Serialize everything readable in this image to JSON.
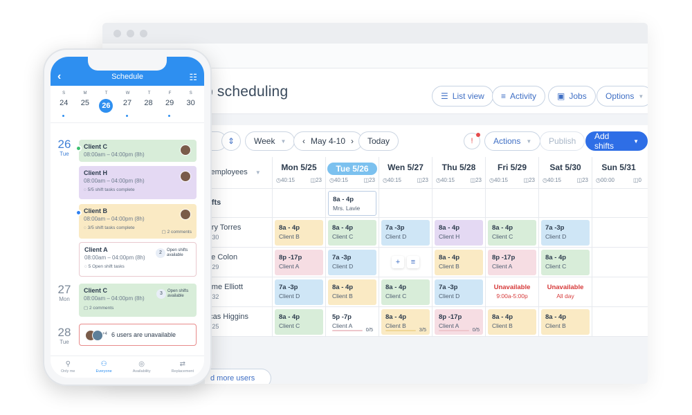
{
  "window": {
    "title": "Job scheduling",
    "title_visible": "b scheduling",
    "header_buttons": [
      {
        "label": "List view",
        "icon": "list-icon"
      },
      {
        "label": "Activity",
        "icon": "lines-icon"
      },
      {
        "label": "Jobs",
        "icon": "briefcase-icon"
      },
      {
        "label": "Options",
        "icon": "chevron-down-icon"
      }
    ]
  },
  "toolbar": {
    "range": "Week",
    "date": "May 4-10",
    "today": "Today",
    "actions": "Actions",
    "publish": "Publish",
    "add_shifts": "Add shifts"
  },
  "grid": {
    "group_label": "y employees",
    "open_shifts_label": "hifts",
    "days": [
      {
        "name": "Mon 5/25",
        "hours": "40:15",
        "count": "23"
      },
      {
        "name": "Tue 5/26",
        "hours": "40:15",
        "count": "23",
        "today": true
      },
      {
        "name": "Wen 5/27",
        "hours": "40:15",
        "count": "23"
      },
      {
        "name": "Thu 5/28",
        "hours": "40:15",
        "count": "23"
      },
      {
        "name": "Fri  5/29",
        "hours": "40:15",
        "count": "23"
      },
      {
        "name": "Sat 5/30",
        "hours": "40:15",
        "count": "23"
      },
      {
        "name": "Sun 5/31",
        "hours": "00:00",
        "count": "0"
      }
    ],
    "open_shift": {
      "time": "8a - 4p",
      "who": "Mrs. Lavie"
    },
    "employees": [
      {
        "name": "arry Torres",
        "hours": "30"
      },
      {
        "name": "ate Colon",
        "hours": "29"
      },
      {
        "name": "rome Elliott",
        "hours": "32"
      },
      {
        "name": "ucas Higgins",
        "hours": "25"
      }
    ],
    "shifts": [
      [
        {
          "t": "8a - 4p",
          "c": "Client B",
          "color": "yellow"
        },
        {
          "t": "8a - 4p",
          "c": "Client C",
          "color": "green"
        },
        {
          "t": "7a -3p",
          "c": "Client D",
          "color": "blue"
        },
        {
          "t": "8a - 4p",
          "c": "Client H",
          "color": "purple"
        },
        {
          "t": "8a - 4p",
          "c": "Client C",
          "color": "green"
        },
        {
          "t": "7a -3p",
          "c": "Client D",
          "color": "blue"
        }
      ],
      [
        {
          "t": "8p -17p",
          "c": "Client A",
          "color": "pink"
        },
        {
          "t": "7a -3p",
          "c": "Client D",
          "color": "blue"
        },
        null,
        {
          "t": "8a - 4p",
          "c": "Client B",
          "color": "yellow"
        },
        {
          "t": "8p -17p",
          "c": "Client A",
          "color": "pink"
        },
        {
          "t": "8a - 4p",
          "c": "Client C",
          "color": "green"
        }
      ],
      [
        {
          "t": "7a -3p",
          "c": "Client D",
          "color": "blue"
        },
        {
          "t": "8a - 4p",
          "c": "Client B",
          "color": "yellow"
        },
        {
          "t": "8a - 4p",
          "c": "Client C",
          "color": "green"
        },
        {
          "t": "7a -3p",
          "c": "Client D",
          "color": "blue"
        },
        {
          "t": "Unavailable",
          "c": "9:00a-5:00p",
          "color": "unavail"
        },
        {
          "t": "Unavailable",
          "c": "All day",
          "color": "unavail"
        }
      ],
      [
        {
          "t": "8a - 4p",
          "c": "Client C",
          "color": "green"
        },
        {
          "t": "5p -7p",
          "c": "Client A",
          "color": "whitepink",
          "progress": "0/5"
        },
        {
          "t": "8a - 4p",
          "c": "Client B",
          "color": "yellow",
          "progress": "3/5"
        },
        {
          "t": "8p -17p",
          "c": "Client A",
          "color": "pink",
          "progress": "0/5"
        },
        {
          "t": "8a - 4p",
          "c": "Client B",
          "color": "yellow"
        },
        {
          "t": "8a - 4p",
          "c": "Client B",
          "color": "yellow"
        }
      ]
    ],
    "add_more": "d more users"
  },
  "phone": {
    "title": "Schedule",
    "week_letters": [
      "S",
      "M",
      "T",
      "W",
      "T",
      "F",
      "S"
    ],
    "week_nums": [
      "24",
      "25",
      "26",
      "27",
      "28",
      "29",
      "30"
    ],
    "days": [
      {
        "num": "26",
        "wd": "Tue"
      },
      {
        "num": "27",
        "wd": "Mon"
      },
      {
        "num": "28",
        "wd": "Tue"
      }
    ],
    "cards": [
      {
        "h": "Client C",
        "tm": "08:00am – 04:00pm (8h)"
      },
      {
        "h": "Client H",
        "tm": "08:00am – 04:00pm (8h)",
        "sub": "5/5 shift tasks complete"
      },
      {
        "h": "Client B",
        "tm": "08:00am – 04:00pm (8h)",
        "sub": "3/5 shift tasks complete",
        "sub2": "2 comments"
      },
      {
        "h": "Client A",
        "tm": "08:00am – 04:00pm (8h)",
        "sub": "5 Open shift tasks",
        "badge": "2",
        "badge_text": "Open shifts available"
      },
      {
        "h": "Client C",
        "tm": "08:00am – 04:00pm (8h)",
        "sub": "2 comments",
        "badge": "3",
        "badge_text": "Open shifts available"
      },
      {
        "h": "6 users are unavailable",
        "plus": "+4"
      }
    ],
    "tabs": [
      {
        "label": "Only me",
        "icon": "person-icon"
      },
      {
        "label": "Everyone",
        "icon": "people-icon",
        "active": true
      },
      {
        "label": "Availability",
        "icon": "check-circle-icon"
      },
      {
        "label": "Replacement",
        "icon": "swap-icon"
      }
    ]
  }
}
